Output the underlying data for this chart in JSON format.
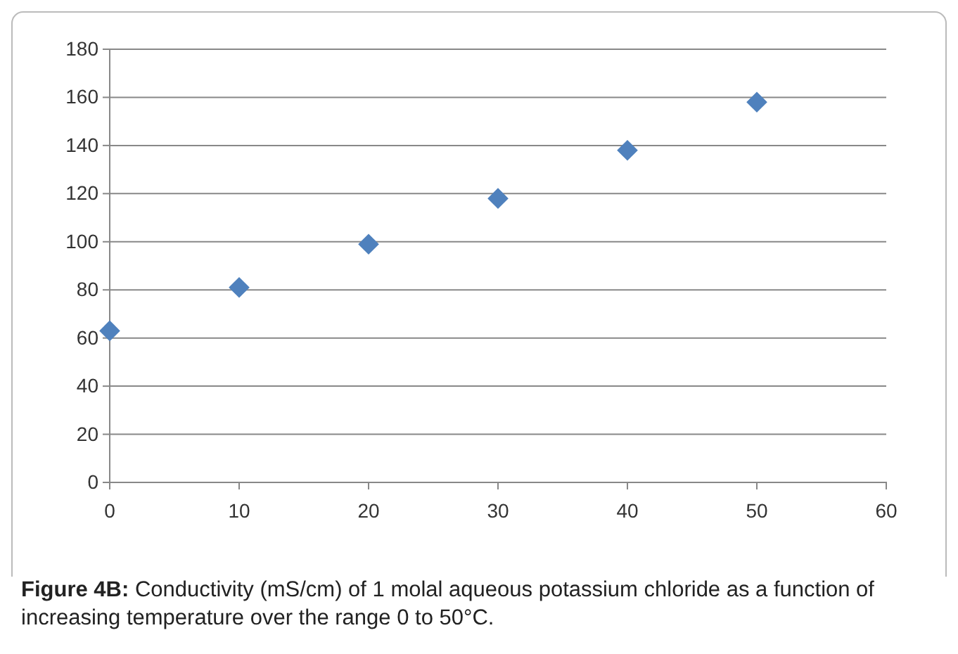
{
  "chart_data": {
    "type": "scatter",
    "x": [
      0,
      10,
      20,
      30,
      40,
      50
    ],
    "series": [
      {
        "color": "#4f81bd",
        "values": [
          63,
          81,
          99,
          118,
          138,
          158
        ]
      }
    ],
    "xlim": [
      0,
      60
    ],
    "xticks": [
      0,
      10,
      20,
      30,
      40,
      50,
      60
    ],
    "ylim": [
      0,
      180
    ],
    "yticks": [
      0,
      20,
      40,
      60,
      80,
      100,
      120,
      140,
      160,
      180
    ],
    "grid": "y",
    "marker": "diamond",
    "annotations": [
      "Figure 4B: Conductivity (mS/cm) of 1 molal aqueous potassium chloride as a function of increasing temperature over the range 0 to 50°C."
    ]
  }
}
